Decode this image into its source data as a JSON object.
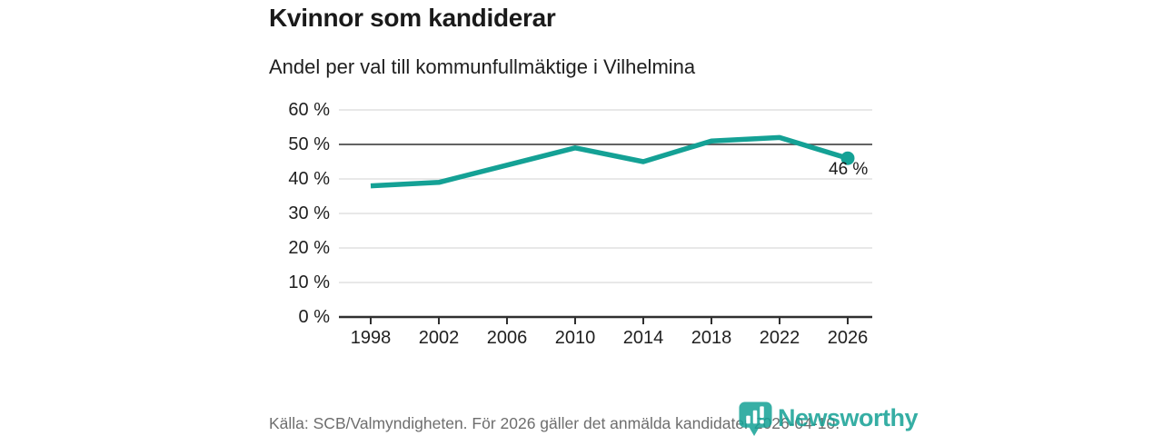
{
  "title": "Kvinnor som kandiderar",
  "subtitle": "Andel per val till kommunfullmäktige i Vilhelmina",
  "footer": {
    "source_text": "Källa: SCB/Valmyndigheten. För 2026 gäller det anmälda kandidater 2026-04-10."
  },
  "branding": {
    "logo_text": "Newsworthy",
    "logo_icon": "speech-bubble-bar-chart-icon",
    "brand_color": "#14a195"
  },
  "chart_data": {
    "type": "line",
    "title": "Kvinnor som kandiderar",
    "subtitle": "Andel per val till kommunfullmäktige i Vilhelmina",
    "categories": [
      "1998",
      "2002",
      "2006",
      "2010",
      "2014",
      "2018",
      "2022",
      "2026"
    ],
    "values": [
      38,
      39,
      44,
      49,
      45,
      51,
      52,
      46
    ],
    "unit": "%",
    "ylim": [
      0,
      60
    ],
    "y_ticks": [
      "60 %",
      "50 %",
      "40 %",
      "30 %",
      "20 %",
      "10 %",
      "0 %"
    ],
    "y_tick_values": [
      60,
      50,
      40,
      30,
      20,
      10,
      0
    ],
    "grid": "horizontal",
    "reference_line_value": 50,
    "end_label": "46 %",
    "line_color": "#14a195",
    "legend": "none"
  }
}
